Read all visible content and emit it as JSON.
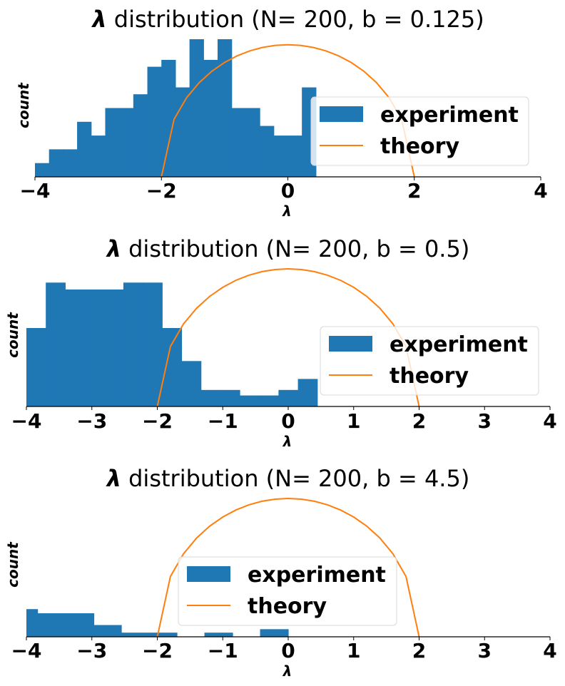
{
  "colors": {
    "experiment": "#1f77b4",
    "theory": "#ff7f0e"
  },
  "chart_data": [
    {
      "type": "bar",
      "title_symbol": "λ",
      "title_text": " distribution (N= 200, b = 0.125)",
      "xlabel": "λ",
      "ylabel": "count",
      "xlim": [
        -4,
        4
      ],
      "ylim": [
        0,
        10
      ],
      "xticks": [
        "−4",
        "−2",
        "0",
        "2",
        "4"
      ],
      "legend": {
        "experiment": "experiment",
        "theory": "theory",
        "position": "center-right"
      },
      "series": [
        {
          "name": "experiment",
          "type": "histogram",
          "bin_start": -4,
          "bin_width": 0.2222,
          "counts": [
            1,
            2,
            2,
            4,
            3,
            5,
            5,
            6,
            8,
            8.5,
            6.5,
            10,
            8.5,
            10,
            5,
            5,
            3.7,
            3,
            3,
            6.5
          ]
        },
        {
          "name": "theory",
          "type": "line",
          "semicircle_radius": 2,
          "peak": 9.6
        }
      ]
    },
    {
      "type": "bar",
      "title_symbol": "λ",
      "title_text": " distribution (N= 200, b = 0.5)",
      "xlabel": "λ",
      "ylabel": "count",
      "xlim": [
        -4,
        4
      ],
      "ylim": [
        0,
        10
      ],
      "xticks": [
        "−4",
        "−3",
        "−2",
        "−1",
        "0",
        "1",
        "2",
        "3",
        "4"
      ],
      "legend": {
        "experiment": "experiment",
        "theory": "theory",
        "position": "center-right"
      },
      "series": [
        {
          "name": "experiment",
          "type": "histogram",
          "bin_start": -4,
          "bin_width": 0.2963,
          "counts": [
            5.7,
            9,
            8.5,
            8.5,
            8.5,
            9,
            9,
            5.7,
            3.3,
            1.2,
            1.2,
            0.8,
            0.8,
            1.2,
            2
          ]
        },
        {
          "name": "theory",
          "type": "line",
          "semicircle_radius": 2,
          "peak": 10
        }
      ]
    },
    {
      "type": "bar",
      "title_symbol": "λ",
      "title_text": " distribution (N= 200, b = 4.5)",
      "xlabel": "λ",
      "ylabel": "count",
      "xlim": [
        -4,
        4
      ],
      "ylim": [
        0,
        10
      ],
      "xticks": [
        "−4",
        "−3",
        "−2",
        "−1",
        "0",
        "1",
        "2",
        "3",
        "4"
      ],
      "legend": {
        "experiment": "experiment",
        "theory": "theory",
        "position": "center"
      },
      "series": [
        {
          "name": "experiment",
          "type": "histogram",
          "bins": [
            {
              "x0": -4.0,
              "x1": -3.83,
              "count": 2.0
            },
            {
              "x0": -3.83,
              "x1": -2.97,
              "count": 1.7
            },
            {
              "x0": -2.97,
              "x1": -2.55,
              "count": 0.85
            },
            {
              "x0": -2.55,
              "x1": -1.7,
              "count": 0.3
            },
            {
              "x0": -1.28,
              "x1": -0.85,
              "count": 0.3
            },
            {
              "x0": -0.43,
              "x1": 0.0,
              "count": 0.55
            }
          ]
        },
        {
          "name": "theory",
          "type": "line",
          "semicircle_radius": 2,
          "peak": 10
        }
      ]
    }
  ]
}
